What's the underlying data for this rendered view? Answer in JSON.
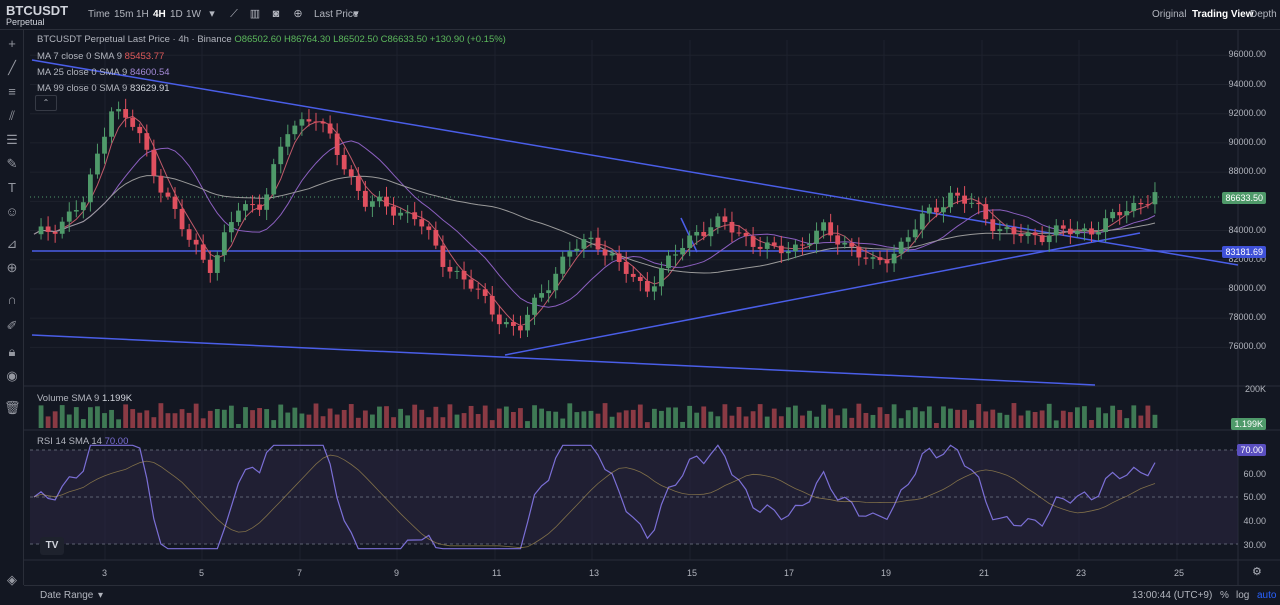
{
  "header": {
    "symbol": "BTCUSDT",
    "symbol_sub": "Perpetual",
    "timeframes": [
      "Time",
      "15m",
      "1H",
      "4H",
      "1D",
      "1W"
    ],
    "active_timeframe": "4H",
    "price_type": "Last Price",
    "views": [
      "Original",
      "Trading View",
      "Depth"
    ],
    "active_view": "Trading View"
  },
  "legend": {
    "title": "BTCUSDT Perpetual Last Price · 4h · Binance",
    "open": "O86502.60",
    "high": "H86764.30",
    "low": "L86502.50",
    "close": "C86633.50",
    "change": "+130.90 (+0.15%)",
    "ma7_label": "MA 7 close 0 SMA 9",
    "ma7_value": "85453.77",
    "ma25_label": "MA 25 close 0 SMA 9",
    "ma25_value": "84600.54",
    "ma99_label": "MA 99 close 0 SMA 9",
    "ma99_value": "83629.91"
  },
  "price_axis": [
    "96000.00",
    "94000.00",
    "92000.00",
    "90000.00",
    "88000.00",
    "86000.00",
    "84000.00",
    "82000.00",
    "80000.00",
    "78000.00",
    "76000.00"
  ],
  "price_tags": {
    "last": "86633.50",
    "line": "83181.69"
  },
  "volume": {
    "label": "Volume SMA 9",
    "value": "1.199K",
    "axis": "200K",
    "tag": "1.199K"
  },
  "rsi": {
    "label": "RSI 14 SMA 14",
    "value": "70.00",
    "axis": [
      "60.00",
      "50.00",
      "40.00",
      "30.00"
    ],
    "tag": "70.00"
  },
  "x_axis": [
    "3",
    "5",
    "7",
    "9",
    "11",
    "13",
    "15",
    "17",
    "19",
    "21",
    "23",
    "25"
  ],
  "footer": {
    "date_range": "Date Range",
    "time": "13:00:44 (UTC+9)",
    "pct": "%",
    "log": "log",
    "auto": "auto"
  },
  "logo": "TV",
  "colors": {
    "bg": "#131722",
    "up": "#4f9a6a",
    "down": "#e0505f",
    "trend": "#4a5ee8",
    "ma_purple": "#8b5fbf",
    "rsi": "#7b6fd6"
  },
  "chart_data": {
    "type": "candlestick",
    "x_dates": [
      "3",
      "5",
      "7",
      "9",
      "11",
      "13",
      "15",
      "17",
      "19",
      "21",
      "23",
      "25"
    ],
    "price_range": [
      75000,
      96500
    ],
    "closes_approx": [
      83500,
      84500,
      86000,
      92500,
      91000,
      87000,
      83500,
      81500,
      85500,
      86000,
      91000,
      92000,
      89000,
      86000,
      85500,
      85000,
      82000,
      80500,
      78500,
      77000,
      80000,
      82500,
      83500,
      81500,
      80000,
      82000,
      84000,
      84500,
      83500,
      82500,
      83000,
      84000,
      83000,
      81500,
      83000,
      85000,
      86500,
      85500,
      84000,
      83500,
      84000,
      83800,
      84500,
      85500,
      86633.5
    ]
  }
}
